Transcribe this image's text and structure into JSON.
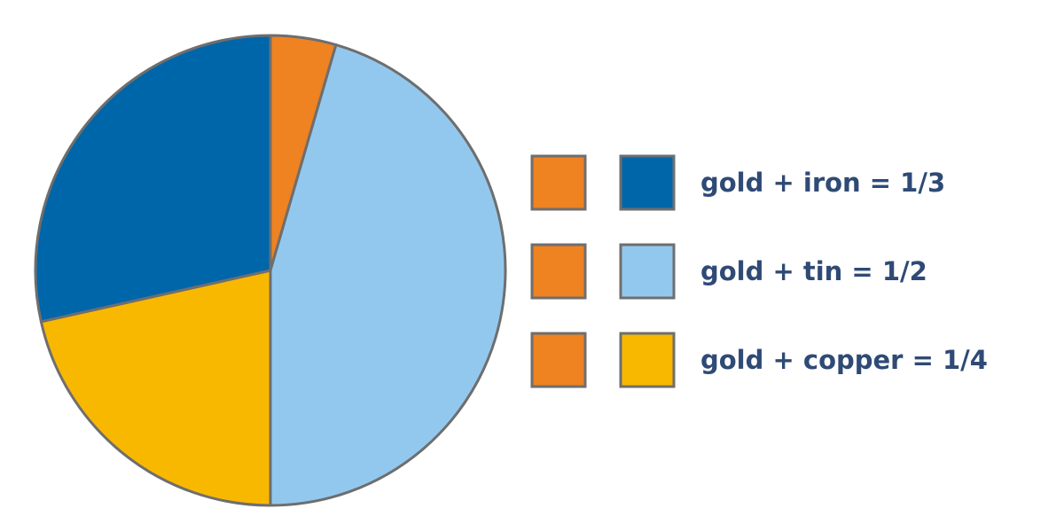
{
  "chart_data": {
    "type": "pie",
    "slices": [
      {
        "label": "gold",
        "value": 4.5,
        "color": "#ef8221"
      },
      {
        "label": "tin",
        "value": 45.5,
        "color": "#93c8ee"
      },
      {
        "label": "copper",
        "value": 21.5,
        "color": "#f9b800"
      },
      {
        "label": "iron",
        "value": 28.5,
        "color": "#0066aa"
      }
    ],
    "legend": [
      {
        "text": "gold + iron = 1/3",
        "colors": [
          "#ef8221",
          "#0066aa"
        ]
      },
      {
        "text": "gold + tin = 1/2",
        "colors": [
          "#ef8221",
          "#93c8ee"
        ]
      },
      {
        "text": "gold + copper = 1/4",
        "colors": [
          "#ef8221",
          "#f9b800"
        ]
      }
    ],
    "legend_placement": "right",
    "outline_color": "#6e6e6e",
    "text_color": "#2f4a75"
  }
}
